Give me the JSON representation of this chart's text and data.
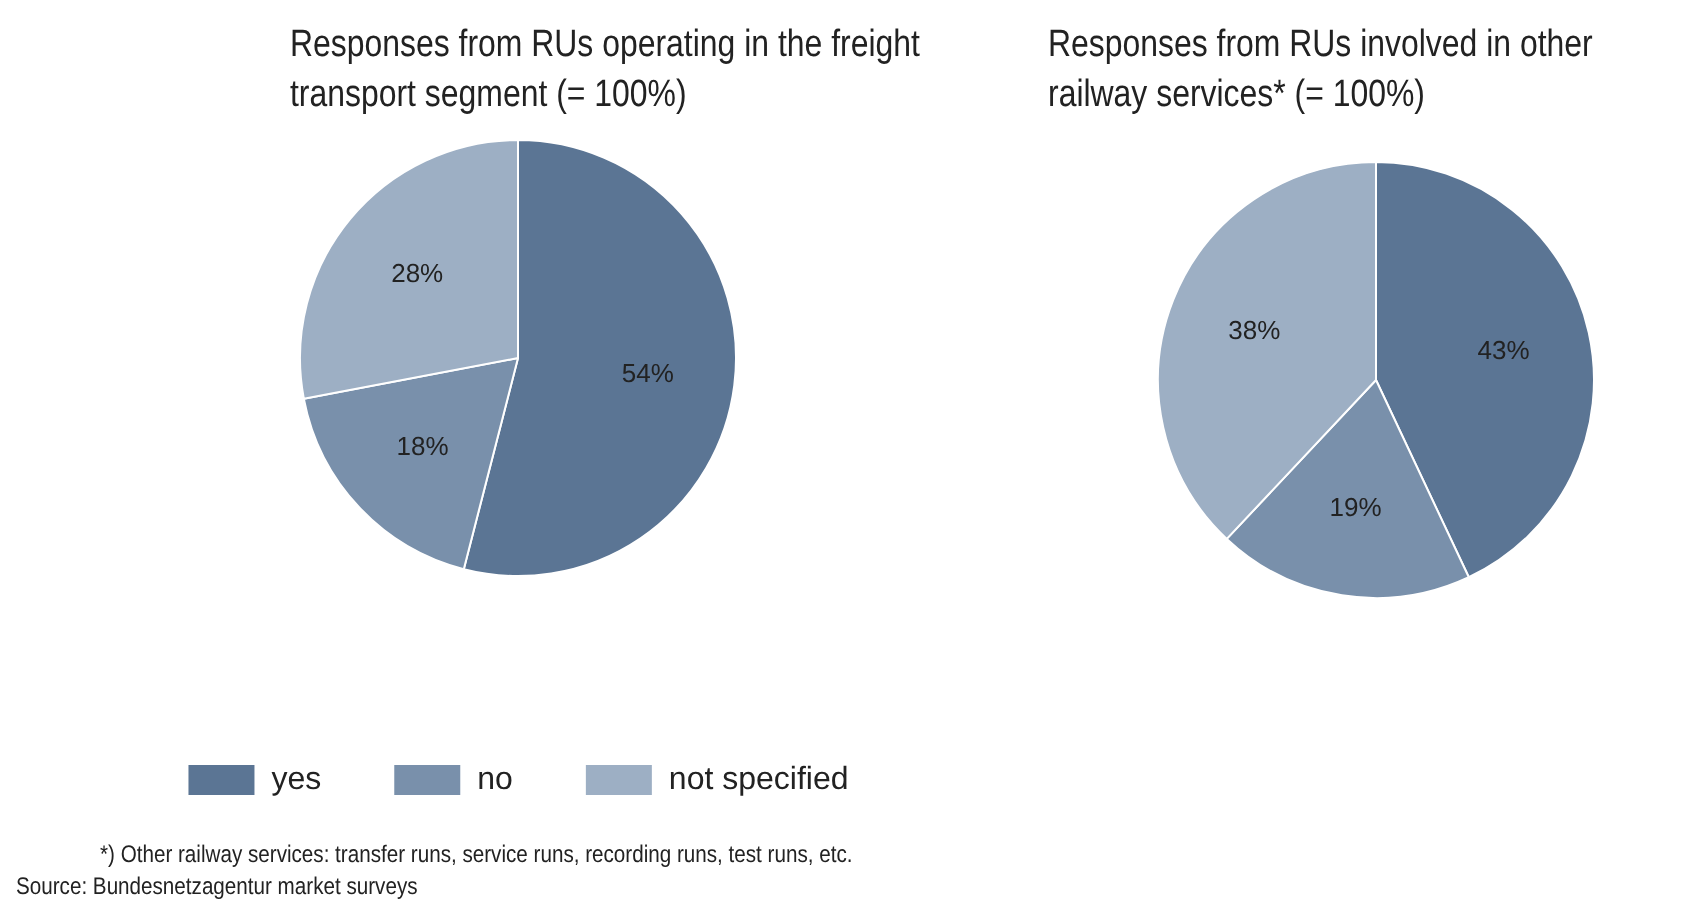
{
  "chart_data": [
    {
      "type": "pie",
      "title": "Responses from RUs operating in the freight transport segment (= 100%)",
      "categories": [
        "yes",
        "no",
        "not specified"
      ],
      "values": [
        54,
        18,
        28
      ],
      "colors": [
        "#5b7594",
        "#7990ab",
        "#9dafc4"
      ],
      "value_labels": [
        "54%",
        "18%",
        "28%"
      ],
      "legend": "bottom",
      "annotations": [
        "*) Other railway services: transfer runs, service runs, recording runs, test runs, etc.",
        "Source: Bundesnetzagentur market surveys"
      ]
    },
    {
      "type": "pie",
      "title": "Responses from RUs involved in other railway services* (= 100%)",
      "categories": [
        null,
        null,
        null
      ],
      "values": [
        43,
        19,
        38
      ],
      "colors": [
        "#5b7594",
        "#7990ab",
        "#9dafc4"
      ],
      "value_labels": [
        "43%",
        "19%",
        "38%"
      ],
      "legend": false
    }
  ]
}
